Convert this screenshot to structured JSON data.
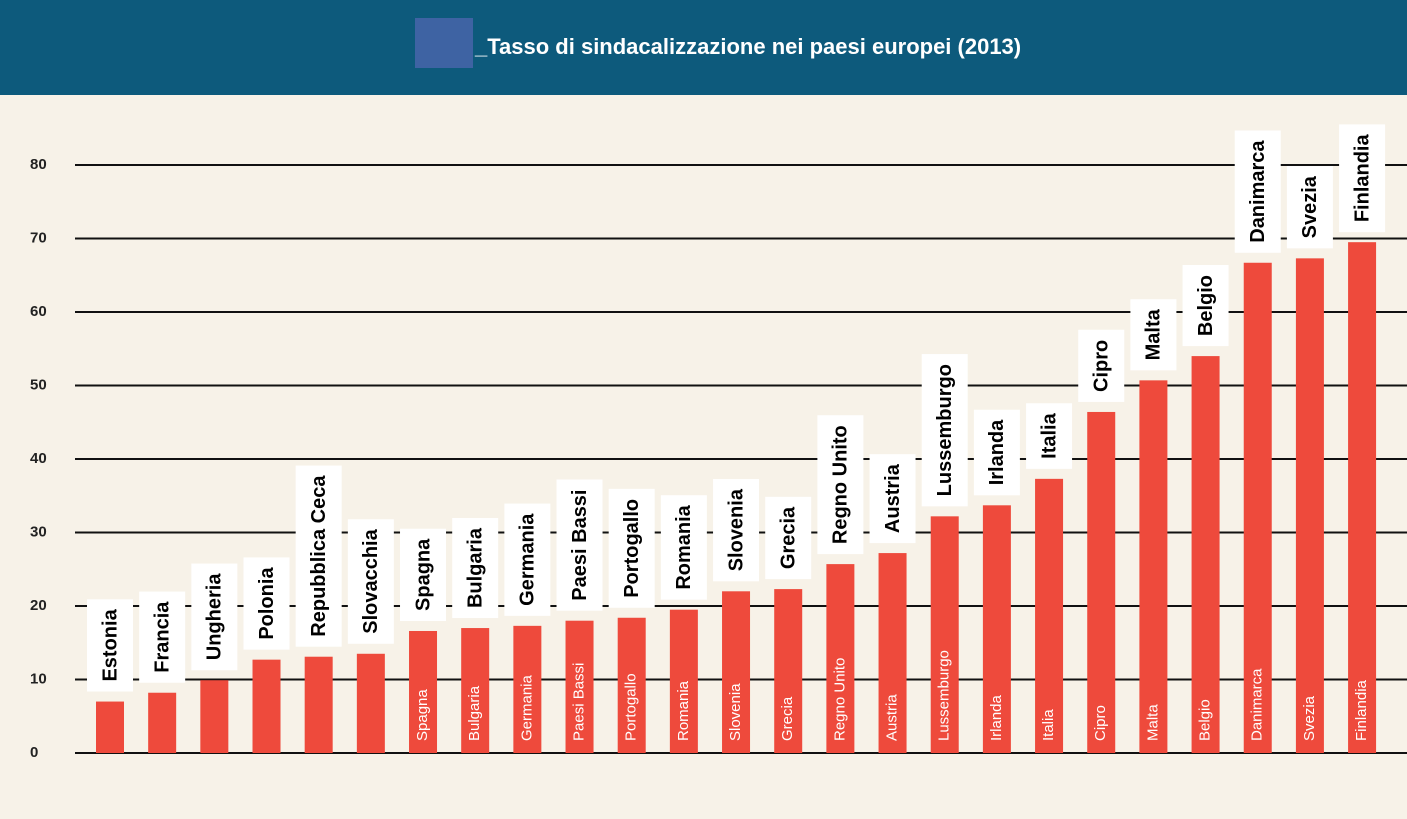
{
  "chart_data": {
    "type": "bar",
    "title": "_Tasso di sindacalizzazione nei paesi europei (2013)",
    "categories": [
      "Estonia",
      "Francia",
      "Ungheria",
      "Polonia",
      "Repubblica Ceca",
      "Slovacchia",
      "Spagna",
      "Bulgaria",
      "Germania",
      "Paesi Bassi",
      "Portogallo",
      "Romania",
      "Slovenia",
      "Grecia",
      "Regno Unito",
      "Austria",
      "Lussemburgo",
      "Irlanda",
      "Italia",
      "Cipro",
      "Malta",
      "Belgio",
      "Danimarca",
      "Svezia",
      "Finlandia"
    ],
    "values": [
      7,
      8.2,
      9.9,
      12.7,
      13.1,
      13.5,
      16.6,
      17,
      17.3,
      18,
      18.4,
      19.5,
      22,
      22.3,
      25.7,
      27.2,
      32.2,
      33.7,
      37.3,
      46.4,
      50.7,
      54,
      66.7,
      67.3,
      69.5
    ],
    "color": "#ee4a3c",
    "ylim": [
      0,
      90
    ],
    "yticks": [
      0,
      10,
      20,
      30,
      40,
      50,
      60,
      70,
      80
    ],
    "grid": true
  }
}
